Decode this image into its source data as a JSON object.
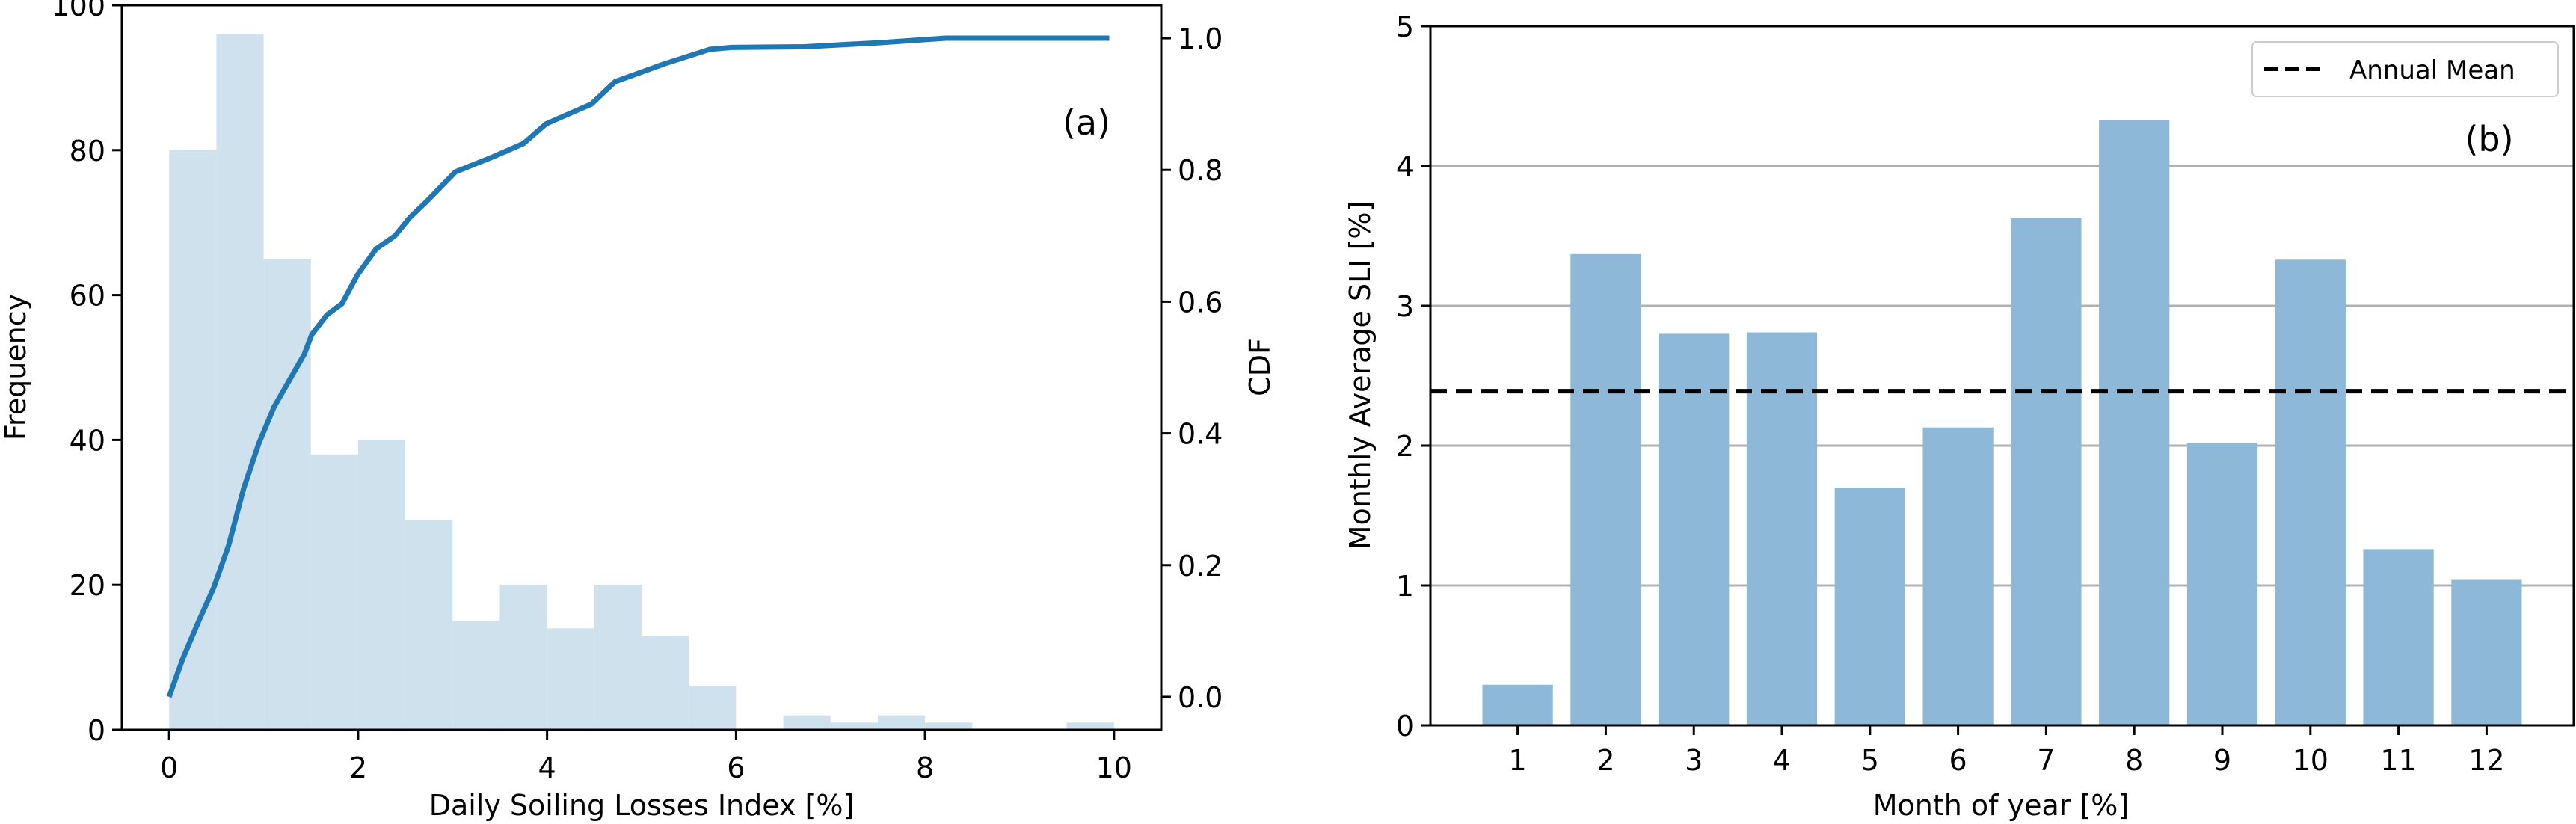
{
  "chart_data": [
    {
      "type": "bar",
      "subtype": "histogram_with_cdf",
      "panel_label": "(a)",
      "xlabel": "Daily Soiling Losses Index [%]",
      "ylabel": "Frequency",
      "y2label": "CDF",
      "xlim": [
        -0.5,
        10.5
      ],
      "ylim": [
        0,
        100
      ],
      "y2lim": [
        -0.05,
        1.05
      ],
      "xticks": [
        "0",
        "2",
        "4",
        "6",
        "8",
        "10"
      ],
      "xtick_values": [
        0,
        2,
        4,
        6,
        8,
        10
      ],
      "yticks": [
        "0",
        "20",
        "40",
        "60",
        "80",
        "100"
      ],
      "ytick_values": [
        0,
        20,
        40,
        60,
        80,
        100
      ],
      "y2ticks": [
        "0.0",
        "0.2",
        "0.4",
        "0.6",
        "0.8",
        "1.0"
      ],
      "y2tick_values": [
        0,
        0.2,
        0.4,
        0.6,
        0.8,
        1.0
      ],
      "bin_width": 0.5,
      "bin_edges_start": [
        0,
        0.5,
        1,
        1.5,
        2,
        2.5,
        3,
        3.5,
        4,
        4.5,
        5,
        5.5,
        6,
        6.5,
        7,
        7.5,
        8,
        8.5,
        9,
        9.5
      ],
      "frequencies": [
        80,
        96,
        65,
        38,
        40,
        29,
        15,
        20,
        14,
        20,
        13,
        6,
        0,
        2,
        1,
        2,
        1,
        0,
        0,
        1
      ],
      "cdf_x": [
        0,
        0.15,
        0.31,
        0.47,
        0.63,
        0.79,
        0.95,
        1.11,
        1.27,
        1.43,
        1.51,
        1.67,
        1.83,
        1.99,
        2.19,
        2.39,
        2.55,
        2.71,
        3.03,
        3.43,
        3.75,
        3.99,
        4.23,
        4.47,
        4.72,
        5.22,
        5.72,
        5.95,
        6.72,
        7.5,
        8.22,
        9.95
      ],
      "cdf_y": [
        0.0,
        0.06,
        0.114,
        0.165,
        0.23,
        0.317,
        0.385,
        0.44,
        0.48,
        0.52,
        0.55,
        0.58,
        0.597,
        0.64,
        0.68,
        0.7,
        0.728,
        0.75,
        0.797,
        0.82,
        0.84,
        0.87,
        0.885,
        0.9,
        0.934,
        0.96,
        0.983,
        0.986,
        0.987,
        0.993,
        1.0,
        1.0
      ],
      "colors": {
        "hist": "#d0e1ee",
        "cdf": "#1f77b4"
      }
    },
    {
      "type": "bar",
      "panel_label": "(b)",
      "xlabel": "Month of year [%]",
      "ylabel": "Monthly Average SLI [%]",
      "categories": [
        "1",
        "2",
        "3",
        "4",
        "5",
        "6",
        "7",
        "8",
        "9",
        "10",
        "11",
        "12"
      ],
      "values": [
        0.29,
        3.37,
        2.8,
        2.81,
        1.7,
        2.13,
        3.63,
        4.33,
        2.02,
        3.33,
        1.26,
        1.04
      ],
      "annual_mean": 2.39,
      "legend": [
        {
          "label": "Annual Mean",
          "style": "dashed"
        }
      ],
      "legend_position": "top-right",
      "xlim": [
        0.01,
        12.99
      ],
      "ylim": [
        0,
        5
      ],
      "yticks": [
        "0",
        "1",
        "2",
        "3",
        "4",
        "5"
      ],
      "ytick_values": [
        0,
        1,
        2,
        3,
        4,
        5
      ],
      "grid": "y",
      "colors": {
        "bar": "#8db8d8",
        "mean": "#000000",
        "grid": "#b0b0b0"
      }
    }
  ]
}
